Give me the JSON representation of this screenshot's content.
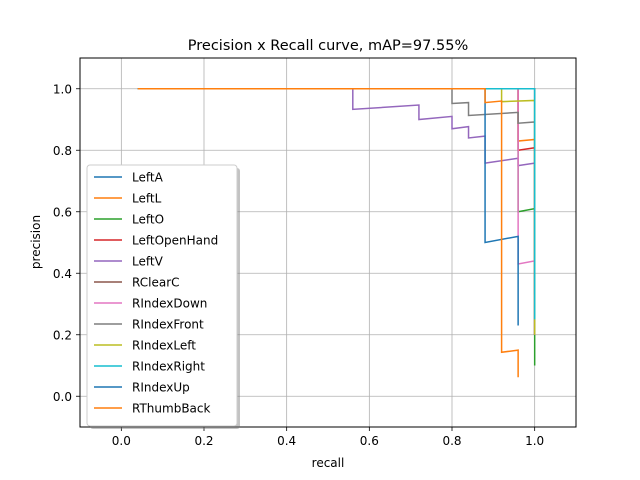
{
  "chart_data": {
    "type": "line",
    "title": "Precision x Recall curve, mAP=97.55%",
    "xlabel": "recall",
    "ylabel": "precision",
    "xlim": [
      -0.1,
      1.1
    ],
    "ylim": [
      -0.1,
      1.1
    ],
    "xticks": [
      0.0,
      0.2,
      0.4,
      0.6,
      0.8,
      1.0
    ],
    "xtick_labels": [
      "0.0",
      "0.2",
      "0.4",
      "0.6",
      "0.8",
      "1.0"
    ],
    "yticks": [
      0.0,
      0.2,
      0.4,
      0.6,
      0.8,
      1.0
    ],
    "ytick_labels": [
      "0.0",
      "0.2",
      "0.4",
      "0.6",
      "0.8",
      "1.0"
    ],
    "grid": true,
    "legend_position": "lower-left",
    "series": [
      {
        "name": "LeftA",
        "color": "#1f77b4",
        "x": [
          0.04,
          1.0,
          1.0
        ],
        "y": [
          1.0,
          1.0,
          0.2
        ]
      },
      {
        "name": "LeftL",
        "color": "#ff7f0e",
        "x": [
          0.04,
          0.96,
          0.96,
          1.0,
          1.0
        ],
        "y": [
          1.0,
          1.0,
          0.83,
          0.835,
          0.2
        ]
      },
      {
        "name": "LeftO",
        "color": "#2ca02c",
        "x": [
          0.04,
          0.96,
          0.96,
          1.0,
          1.0
        ],
        "y": [
          1.0,
          1.0,
          0.6,
          0.61,
          0.1
        ]
      },
      {
        "name": "LeftOpenHand",
        "color": "#d62728",
        "x": [
          0.04,
          0.96,
          0.96,
          1.0,
          1.0
        ],
        "y": [
          1.0,
          1.0,
          0.8,
          0.808,
          0.2
        ]
      },
      {
        "name": "LeftV",
        "color": "#9467bd",
        "x": [
          0.04,
          0.56,
          0.56,
          0.72,
          0.72,
          0.8,
          0.8,
          0.84,
          0.84,
          0.88,
          0.88,
          0.96,
          0.96,
          1.0,
          1.0
        ],
        "y": [
          1.0,
          1.0,
          0.933,
          0.947,
          0.9,
          0.91,
          0.87,
          0.877,
          0.84,
          0.846,
          0.758,
          0.774,
          0.75,
          0.758,
          0.2
        ]
      },
      {
        "name": "RClearC",
        "color": "#8c564b",
        "x": [
          0.04,
          1.0,
          1.0
        ],
        "y": [
          1.0,
          1.0,
          0.33
        ]
      },
      {
        "name": "RIndexDown",
        "color": "#e377c2",
        "x": [
          0.04,
          0.96,
          0.96,
          1.0,
          1.0
        ],
        "y": [
          1.0,
          1.0,
          0.43,
          0.44,
          0.2
        ]
      },
      {
        "name": "RIndexFront",
        "color": "#7f7f7f",
        "x": [
          0.04,
          0.8,
          0.8,
          0.84,
          0.84,
          0.96,
          0.96,
          1.0,
          1.0
        ],
        "y": [
          1.0,
          1.0,
          0.952,
          0.955,
          0.913,
          0.923,
          0.888,
          0.892,
          0.2
        ]
      },
      {
        "name": "RIndexLeft",
        "color": "#bcbd22",
        "x": [
          0.04,
          0.92,
          0.92,
          1.0,
          1.0
        ],
        "y": [
          1.0,
          1.0,
          0.958,
          0.962,
          0.2
        ]
      },
      {
        "name": "RIndexRight",
        "color": "#17becf",
        "x": [
          0.04,
          1.0,
          1.0
        ],
        "y": [
          1.0,
          1.0,
          0.25
        ]
      },
      {
        "name": "RIndexUp",
        "color": "#1f77b4",
        "x": [
          0.04,
          0.88,
          0.88,
          0.96,
          0.96
        ],
        "y": [
          1.0,
          1.0,
          0.5,
          0.52,
          0.23
        ]
      },
      {
        "name": "RThumbBack",
        "color": "#ff7f0e",
        "x": [
          0.04,
          0.88,
          0.88,
          0.92,
          0.92,
          0.96,
          0.96
        ],
        "y": [
          1.0,
          1.0,
          0.955,
          0.96,
          0.143,
          0.15,
          0.062
        ]
      }
    ]
  }
}
